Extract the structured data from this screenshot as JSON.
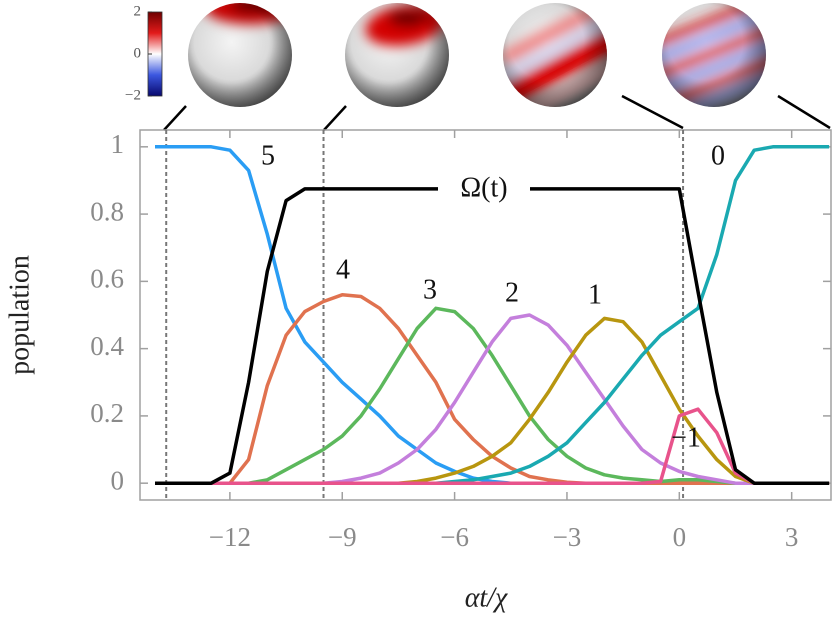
{
  "chart_data": {
    "type": "line",
    "xlabel": "αt/χ",
    "ylabel": "population",
    "xlim": [
      -14.4,
      4.05
    ],
    "ylim": [
      -0.05,
      1.05
    ],
    "xticks": [
      {
        "value": -12,
        "label": "−12"
      },
      {
        "value": -9,
        "label": "−9"
      },
      {
        "value": -6,
        "label": "−6"
      },
      {
        "value": -3,
        "label": "−3"
      },
      0,
      3
    ],
    "yticks": [
      0,
      0.2,
      0.4,
      0.6,
      0.8,
      1
    ],
    "grid": false,
    "x": [
      -14,
      -13.5,
      -13,
      -12.5,
      -12,
      -11.5,
      -11,
      -10.5,
      -10,
      -9.5,
      -9,
      -8.5,
      -8,
      -7.5,
      -7,
      -6.5,
      -6,
      -5.5,
      -5,
      -4.5,
      -4,
      -3.5,
      -3,
      -2.5,
      -2,
      -1.5,
      -1,
      -0.5,
      0,
      0.5,
      1,
      1.5,
      2,
      2.5,
      3,
      3.5,
      4
    ],
    "vlines": [
      -13.7,
      -9.5,
      0.1
    ],
    "series": [
      {
        "name": "5",
        "color": "#2a9df4",
        "values": [
          1,
          1,
          1,
          1,
          0.99,
          0.93,
          0.74,
          0.52,
          0.42,
          0.36,
          0.3,
          0.25,
          0.2,
          0.14,
          0.1,
          0.06,
          0.035,
          0.015,
          0.005,
          0,
          0,
          0,
          0,
          0,
          0,
          0,
          0,
          0,
          0,
          0,
          0,
          0,
          0,
          0,
          0,
          0,
          0
        ]
      },
      {
        "name": "4",
        "color": "#e0724f",
        "values": [
          0,
          0,
          0,
          0,
          0,
          0.07,
          0.29,
          0.44,
          0.51,
          0.54,
          0.56,
          0.555,
          0.52,
          0.46,
          0.38,
          0.3,
          0.19,
          0.13,
          0.08,
          0.045,
          0.02,
          0.01,
          0.003,
          0,
          0,
          0,
          0,
          0,
          0,
          0,
          0,
          0,
          0,
          0,
          0,
          0,
          0
        ]
      },
      {
        "name": "3",
        "color": "#5cb85c",
        "values": [
          0,
          0,
          0,
          0,
          0,
          0,
          0.01,
          0.04,
          0.07,
          0.1,
          0.14,
          0.2,
          0.28,
          0.37,
          0.46,
          0.52,
          0.51,
          0.46,
          0.38,
          0.29,
          0.2,
          0.13,
          0.08,
          0.045,
          0.025,
          0.015,
          0.01,
          0.005,
          0.01,
          0.01,
          0.005,
          0,
          0,
          0,
          0,
          0,
          0
        ]
      },
      {
        "name": "2",
        "color": "#c47fdc",
        "values": [
          0,
          0,
          0,
          0,
          0,
          0,
          0,
          0,
          0,
          0,
          0.005,
          0.015,
          0.03,
          0.06,
          0.1,
          0.16,
          0.24,
          0.33,
          0.42,
          0.49,
          0.5,
          0.47,
          0.41,
          0.33,
          0.25,
          0.17,
          0.1,
          0.06,
          0.035,
          0.02,
          0.01,
          0,
          0,
          0,
          0,
          0,
          0
        ]
      },
      {
        "name": "1",
        "color": "#b8960f",
        "values": [
          0,
          0,
          0,
          0,
          0,
          0,
          0,
          0,
          0,
          0,
          0,
          0,
          0,
          0,
          0.005,
          0.015,
          0.03,
          0.05,
          0.08,
          0.12,
          0.19,
          0.27,
          0.36,
          0.44,
          0.49,
          0.48,
          0.42,
          0.32,
          0.22,
          0.14,
          0.07,
          0.02,
          0,
          0,
          0,
          0,
          0
        ]
      },
      {
        "name": "0",
        "color": "#1aa9b1",
        "values": [
          0,
          0,
          0,
          0,
          0,
          0,
          0,
          0,
          0,
          0,
          0,
          0,
          0,
          0,
          0,
          0,
          0.005,
          0.01,
          0.02,
          0.03,
          0.05,
          0.08,
          0.12,
          0.18,
          0.24,
          0.31,
          0.38,
          0.44,
          0.48,
          0.52,
          0.68,
          0.9,
          0.99,
          1,
          1,
          1,
          1
        ]
      },
      {
        "name": "−1",
        "color": "#e8538b",
        "values": [
          0,
          0,
          0,
          0,
          0,
          0,
          0,
          0,
          0,
          0,
          0,
          0,
          0,
          0,
          0,
          0,
          0,
          0,
          0,
          0,
          0,
          0,
          0,
          0,
          0,
          0,
          0,
          0.005,
          0.2,
          0.22,
          0.15,
          0.03,
          0,
          0,
          0,
          0,
          0
        ]
      },
      {
        "name": "Ω(t)",
        "color": "#000000",
        "values": [
          0,
          0,
          0,
          0,
          0.03,
          0.3,
          0.63,
          0.84,
          0.875,
          0.875,
          0.875,
          0.875,
          0.875,
          0.875,
          0.875,
          0.875,
          0.875,
          0.875,
          0.875,
          0.875,
          0.875,
          0.875,
          0.875,
          0.875,
          0.875,
          0.875,
          0.875,
          0.875,
          0.875,
          0.57,
          0.27,
          0.04,
          0,
          0,
          0,
          0,
          0
        ]
      }
    ],
    "colorbar": {
      "lim": [
        -2,
        2
      ],
      "ticks": [
        2,
        0,
        {
          "value": -2,
          "label": "−2"
        }
      ]
    }
  }
}
